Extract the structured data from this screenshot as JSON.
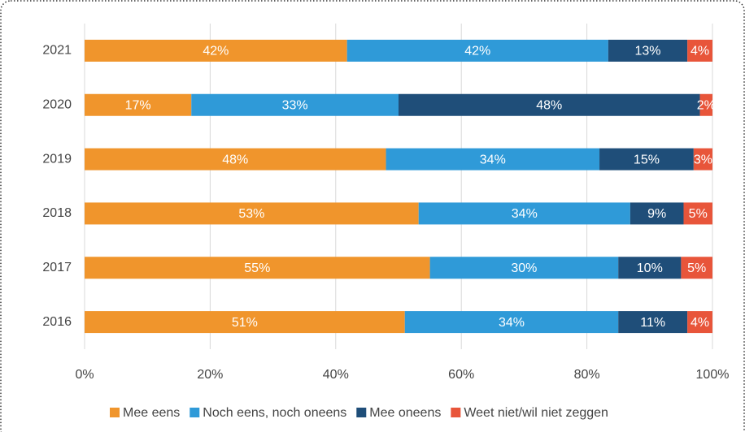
{
  "chart_data": {
    "type": "stacked-barh",
    "categories": [
      "2021",
      "2020",
      "2019",
      "2018",
      "2017",
      "2016"
    ],
    "series": [
      {
        "name": "Mee eens",
        "color": "#f0952c",
        "values": [
          41.8,
          17,
          48,
          53.2,
          55,
          51
        ],
        "value_labels": [
          "42%",
          "17%",
          "48%",
          "53%",
          "55%",
          "51%"
        ]
      },
      {
        "name": "Noch eens, noch oneens",
        "color": "#2f9ad8",
        "values": [
          41.6,
          33,
          34,
          33.7,
          30,
          34
        ],
        "value_labels": [
          "42%",
          "33%",
          "34%",
          "34%",
          "30%",
          "34%"
        ]
      },
      {
        "name": "Mee oneens",
        "color": "#1f4e79",
        "values": [
          12.6,
          48,
          15,
          8.5,
          10,
          11
        ],
        "value_labels": [
          "13%",
          "48%",
          "15%",
          "9%",
          "10%",
          "11%"
        ]
      },
      {
        "name": "Weet niet/wil niet zeggen",
        "color": "#e8553a",
        "values": [
          4.0,
          2,
          3,
          4.6,
          5,
          4
        ],
        "value_labels": [
          "4%",
          "2%",
          "3%",
          "5%",
          "5%",
          "4%"
        ]
      }
    ],
    "xlim": [
      0,
      100
    ],
    "xticks": [
      {
        "value": 0,
        "label": "0%"
      },
      {
        "value": 20,
        "label": "20%"
      },
      {
        "value": 40,
        "label": "40%"
      },
      {
        "value": 60,
        "label": "60%"
      },
      {
        "value": 80,
        "label": "80%"
      },
      {
        "value": 100,
        "label": "100%"
      }
    ],
    "grid": true,
    "legend": "bottom"
  }
}
